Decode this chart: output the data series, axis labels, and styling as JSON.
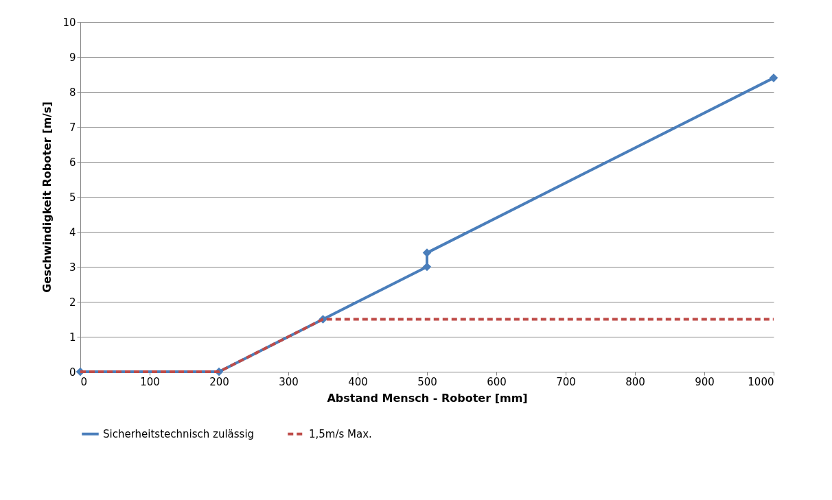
{
  "chart_data": {
    "type": "line",
    "xlabel": "Abstand Mensch - Roboter [mm]",
    "ylabel": "Geschwindigkeit Roboter [m/s]",
    "xlim": [
      0,
      1000
    ],
    "xticks": [
      0,
      100,
      200,
      300,
      400,
      500,
      600,
      700,
      800,
      900,
      1000
    ],
    "ylim": [
      0,
      10
    ],
    "yticks": [
      0,
      1,
      2,
      3,
      4,
      5,
      6,
      7,
      8,
      9,
      10
    ],
    "grid": "y",
    "legend": "bottom",
    "series": [
      {
        "name": "Sicherheitstechnisch zulässig",
        "color": "#4a7ebb",
        "x": [
          0,
          200,
          350,
          500,
          500,
          1000
        ],
        "values": [
          0,
          0,
          1.5,
          3,
          3.4,
          8.4
        ],
        "marker": "diamond",
        "line_style": "solid"
      },
      {
        "name": "1,5m/s Max.",
        "color": "#be4b48",
        "x": [
          0,
          200,
          350,
          1000
        ],
        "values": [
          0,
          0,
          1.5,
          1.5
        ],
        "marker": "none",
        "line_style": "dashed"
      }
    ]
  }
}
